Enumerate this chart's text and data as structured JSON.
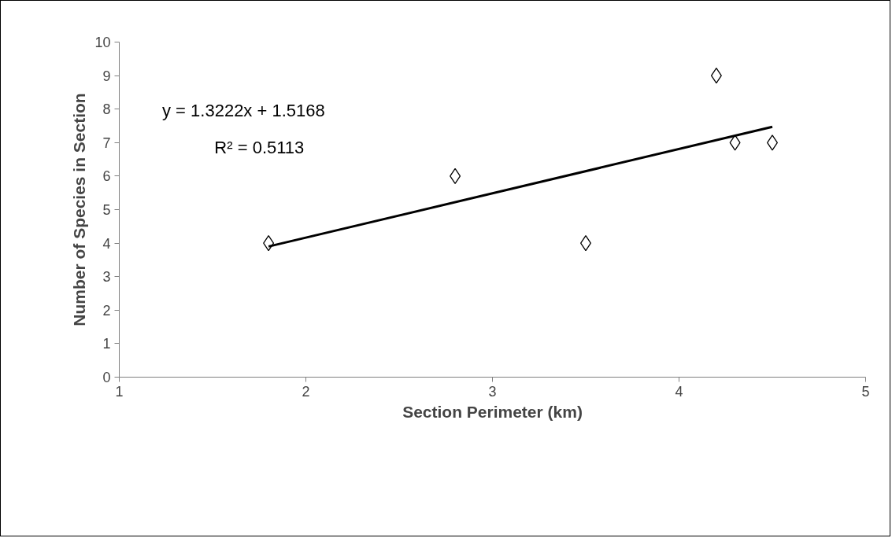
{
  "chart_data": {
    "type": "scatter",
    "xlabel": "Section Perimeter (km)",
    "ylabel": "Number of Species in Section",
    "x": [
      1.8,
      2.8,
      3.5,
      4.2,
      4.3,
      4.5
    ],
    "series": [
      {
        "type": "scatter",
        "color": "#000000",
        "marker": "diamond",
        "values": [
          4,
          6,
          4,
          9,
          7,
          7
        ]
      },
      {
        "type": "line",
        "color": "#000000",
        "x": [
          1.8,
          4.5
        ],
        "values": [
          3.9,
          7.47
        ]
      }
    ],
    "xlim": [
      1,
      5
    ],
    "xticks": [
      1,
      2,
      3,
      4,
      5
    ],
    "ylim": [
      0,
      10
    ],
    "yticks": [
      0,
      1,
      2,
      3,
      4,
      5,
      6,
      7,
      8,
      9,
      10
    ],
    "grid": false,
    "annotations": [
      "y = 1.3222x + 1.5168",
      "R² = 0.5113"
    ]
  }
}
